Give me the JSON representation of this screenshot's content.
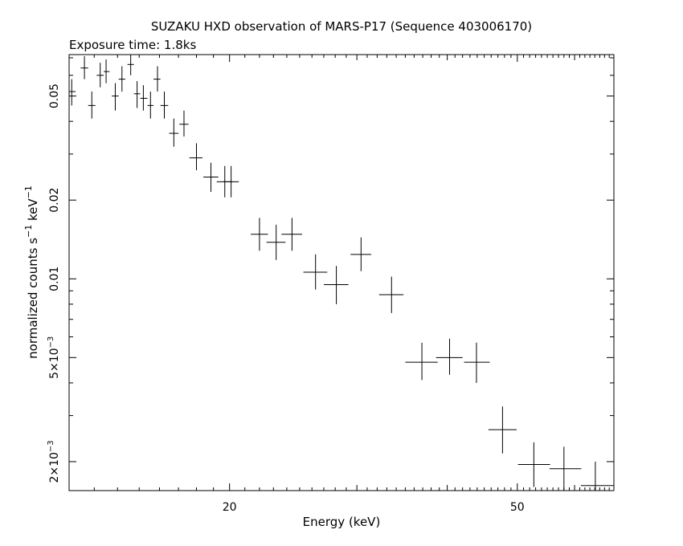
{
  "chart_data": {
    "type": "scatter",
    "title": "SUZAKU HXD observation of MARS-P17 (Sequence 403006170)",
    "subtitle": "Exposure time: 1.8ks",
    "xlabel": "Energy (keV)",
    "ylabel": {
      "base": "normalized counts s",
      "sup1": "−1",
      "mid": " keV",
      "sup2": "−1"
    },
    "x_scale": "log",
    "y_scale": "log",
    "xlim": [
      12,
      68
    ],
    "ylim": [
      0.00155,
      0.072
    ],
    "grid": false,
    "x_ticks": [
      {
        "value": 20,
        "label": "20"
      },
      {
        "value": 50,
        "label": "50"
      }
    ],
    "y_ticks": [
      {
        "value": 0.05,
        "label": "0.05"
      },
      {
        "value": 0.02,
        "label": "0.02"
      },
      {
        "value": 0.01,
        "label": "0.01"
      },
      {
        "value": 0.005,
        "label_base": "5×10",
        "label_exp": "−3"
      },
      {
        "value": 0.002,
        "label_base": "2×10",
        "label_exp": "−3"
      }
    ],
    "points": [
      {
        "x": 12.1,
        "xerr": [
          12.0,
          12.25
        ],
        "y": 0.052,
        "yerr": [
          0.046,
          0.058
        ]
      },
      {
        "x": 12.6,
        "xerr": [
          12.45,
          12.75
        ],
        "y": 0.064,
        "yerr": [
          0.058,
          0.071
        ]
      },
      {
        "x": 12.9,
        "xerr": [
          12.75,
          13.05
        ],
        "y": 0.046,
        "yerr": [
          0.041,
          0.052
        ]
      },
      {
        "x": 13.25,
        "xerr": [
          13.1,
          13.4
        ],
        "y": 0.06,
        "yerr": [
          0.054,
          0.067
        ]
      },
      {
        "x": 13.5,
        "xerr": [
          13.4,
          13.65
        ],
        "y": 0.062,
        "yerr": [
          0.056,
          0.069
        ]
      },
      {
        "x": 13.9,
        "xerr": [
          13.75,
          14.05
        ],
        "y": 0.05,
        "yerr": [
          0.044,
          0.056
        ]
      },
      {
        "x": 14.2,
        "xerr": [
          14.05,
          14.35
        ],
        "y": 0.058,
        "yerr": [
          0.052,
          0.065
        ]
      },
      {
        "x": 14.6,
        "xerr": [
          14.45,
          14.75
        ],
        "y": 0.066,
        "yerr": [
          0.06,
          0.073
        ]
      },
      {
        "x": 14.9,
        "xerr": [
          14.75,
          15.05
        ],
        "y": 0.051,
        "yerr": [
          0.045,
          0.057
        ]
      },
      {
        "x": 15.2,
        "xerr": [
          15.05,
          15.4
        ],
        "y": 0.049,
        "yerr": [
          0.044,
          0.055
        ]
      },
      {
        "x": 15.55,
        "xerr": [
          15.4,
          15.7
        ],
        "y": 0.046,
        "yerr": [
          0.041,
          0.052
        ]
      },
      {
        "x": 15.9,
        "xerr": [
          15.7,
          16.05
        ],
        "y": 0.058,
        "yerr": [
          0.052,
          0.065
        ]
      },
      {
        "x": 16.25,
        "xerr": [
          16.05,
          16.45
        ],
        "y": 0.046,
        "yerr": [
          0.041,
          0.052
        ]
      },
      {
        "x": 16.75,
        "xerr": [
          16.5,
          17.0
        ],
        "y": 0.036,
        "yerr": [
          0.032,
          0.041
        ]
      },
      {
        "x": 17.3,
        "xerr": [
          17.05,
          17.55
        ],
        "y": 0.039,
        "yerr": [
          0.035,
          0.044
        ]
      },
      {
        "x": 18.0,
        "xerr": [
          17.6,
          18.35
        ],
        "y": 0.029,
        "yerr": [
          0.026,
          0.033
        ]
      },
      {
        "x": 18.85,
        "xerr": [
          18.4,
          19.3
        ],
        "y": 0.0245,
        "yerr": [
          0.0215,
          0.0278
        ]
      },
      {
        "x": 19.7,
        "xerr": [
          19.2,
          20.2
        ],
        "y": 0.0235,
        "yerr": [
          0.0205,
          0.027
        ]
      },
      {
        "x": 20.1,
        "xerr": [
          19.6,
          20.6
        ],
        "y": 0.0235,
        "yerr": [
          0.0205,
          0.027
        ]
      },
      {
        "x": 22.0,
        "xerr": [
          21.4,
          22.6
        ],
        "y": 0.0148,
        "yerr": [
          0.0128,
          0.0171
        ]
      },
      {
        "x": 23.2,
        "xerr": [
          22.5,
          23.9
        ],
        "y": 0.0138,
        "yerr": [
          0.0118,
          0.0161
        ]
      },
      {
        "x": 24.4,
        "xerr": [
          23.6,
          25.2
        ],
        "y": 0.0148,
        "yerr": [
          0.0128,
          0.0171
        ]
      },
      {
        "x": 26.3,
        "xerr": [
          25.3,
          27.3
        ],
        "y": 0.0106,
        "yerr": [
          0.0091,
          0.0124
        ]
      },
      {
        "x": 28.1,
        "xerr": [
          27.0,
          29.2
        ],
        "y": 0.0095,
        "yerr": [
          0.008,
          0.0112
        ]
      },
      {
        "x": 30.4,
        "xerr": [
          29.4,
          31.4
        ],
        "y": 0.0124,
        "yerr": [
          0.0107,
          0.0144
        ]
      },
      {
        "x": 33.5,
        "xerr": [
          32.2,
          34.8
        ],
        "y": 0.0087,
        "yerr": [
          0.0074,
          0.0102
        ]
      },
      {
        "x": 36.9,
        "xerr": [
          35.0,
          38.8
        ],
        "y": 0.0048,
        "yerr": [
          0.0041,
          0.0057
        ]
      },
      {
        "x": 40.3,
        "xerr": [
          38.6,
          42.0
        ],
        "y": 0.005,
        "yerr": [
          0.0043,
          0.0059
        ]
      },
      {
        "x": 43.9,
        "xerr": [
          42.2,
          45.8
        ],
        "y": 0.0048,
        "yerr": [
          0.004,
          0.0057
        ]
      },
      {
        "x": 47.7,
        "xerr": [
          45.6,
          49.9
        ],
        "y": 0.00265,
        "yerr": [
          0.00215,
          0.00325
        ]
      },
      {
        "x": 52.7,
        "xerr": [
          50.1,
          55.5
        ],
        "y": 0.00195,
        "yerr": [
          0.0016,
          0.00237
        ]
      },
      {
        "x": 58.0,
        "xerr": [
          55.4,
          61.3
        ],
        "y": 0.00188,
        "yerr": [
          0.00155,
          0.00228
        ]
      },
      {
        "x": 64.1,
        "xerr": [
          61.2,
          67.9
        ],
        "y": 0.00162,
        "yerr": [
          0.0013,
          0.002
        ]
      }
    ]
  }
}
